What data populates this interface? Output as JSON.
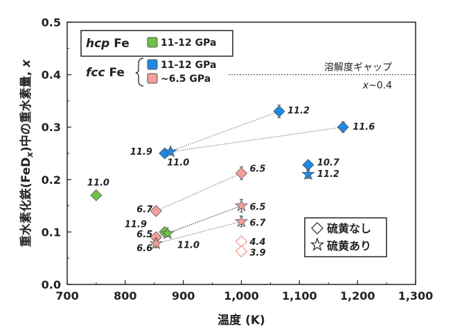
{
  "chart_data": {
    "type": "scatter",
    "title": "",
    "xlabel": "温度 (K)",
    "ylabel_parts": [
      "重水素化鉄(FeD",
      "x",
      ")中の重水素量, ",
      "x"
    ],
    "xlim": [
      700,
      1300
    ],
    "ylim": [
      0.0,
      0.5
    ],
    "xticks": [
      700,
      800,
      900,
      1000,
      1100,
      1200,
      1300
    ],
    "xtick_labels": [
      "700",
      "800",
      "900",
      "1,000",
      "1,100",
      "1,200",
      "1,300"
    ],
    "yticks": [
      0.0,
      0.1,
      0.2,
      0.3,
      0.4,
      0.5
    ],
    "ytick_labels": [
      "0.0",
      "0.1",
      "0.2",
      "0.3",
      "0.4",
      "0.5"
    ],
    "colors": {
      "hcp_green": "#6cc24a",
      "fcc_blue": "#1e88e5",
      "fcc_pink": "#f4a09a",
      "edge": "#555555"
    },
    "legend": {
      "entries": [
        {
          "phase_italic": "hcp",
          "phase_suffix": " Fe",
          "label": "11-12 GPa",
          "color_key": "hcp_green"
        },
        {
          "phase_italic": "fcc",
          "phase_suffix": " Fe",
          "label": "11-12 GPa",
          "color_key": "fcc_blue"
        },
        {
          "phase_italic": "",
          "phase_suffix": "",
          "label": "~6.5 GPa",
          "color_key": "fcc_pink"
        }
      ],
      "placement": "top-left"
    },
    "shape_legend": {
      "diamond_label": "硫黄なし",
      "star_label": "硫黄あり",
      "placement": "lower-right"
    },
    "gap_line": {
      "y": 0.4,
      "label": "溶解度ギャップ",
      "sublabel_italic": "x",
      "sublabel_rest": "~0.4"
    },
    "points": [
      {
        "x": 750,
        "y": 0.17,
        "marker": "diamond",
        "color_key": "hcp_green",
        "label": "11.0",
        "err": 0.006
      },
      {
        "x": 868,
        "y": 0.1,
        "marker": "diamond",
        "color_key": "hcp_green",
        "label": "11.9",
        "err": 0.006
      },
      {
        "x": 873,
        "y": 0.097,
        "marker": "star",
        "color_key": "hcp_green",
        "label": "11.0",
        "err": 0.006
      },
      {
        "x": 868,
        "y": 0.25,
        "marker": "diamond",
        "color_key": "fcc_blue",
        "label": "11.9",
        "err": 0.006
      },
      {
        "x": 878,
        "y": 0.253,
        "marker": "star",
        "color_key": "fcc_blue",
        "label": "11.0",
        "err": 0.006
      },
      {
        "x": 1065,
        "y": 0.33,
        "marker": "diamond",
        "color_key": "fcc_blue",
        "label": "11.2",
        "err": 0.012
      },
      {
        "x": 1175,
        "y": 0.3,
        "marker": "diamond",
        "color_key": "fcc_blue",
        "label": "11.6",
        "err": 0.01
      },
      {
        "x": 1115,
        "y": 0.228,
        "marker": "diamond",
        "color_key": "fcc_blue",
        "label": "10.7",
        "err": 0.008
      },
      {
        "x": 1115,
        "y": 0.21,
        "marker": "star",
        "color_key": "fcc_blue",
        "label": "11.2",
        "err": 0.008
      },
      {
        "x": 853,
        "y": 0.14,
        "marker": "diamond",
        "color_key": "fcc_pink",
        "label": "6.7",
        "err": 0.008
      },
      {
        "x": 853,
        "y": 0.09,
        "marker": "diamond",
        "color_key": "fcc_pink",
        "label": "6.5",
        "err": 0.008
      },
      {
        "x": 853,
        "y": 0.078,
        "marker": "star",
        "color_key": "fcc_pink",
        "label": "6.6",
        "err": 0.008
      },
      {
        "x": 1000,
        "y": 0.212,
        "marker": "diamond",
        "color_key": "fcc_pink",
        "label": "6.5",
        "err": 0.012
      },
      {
        "x": 1000,
        "y": 0.15,
        "marker": "star",
        "color_key": "fcc_pink",
        "label": "6.5",
        "err": 0.012
      },
      {
        "x": 1000,
        "y": 0.12,
        "marker": "star",
        "color_key": "fcc_pink",
        "label": "6.7",
        "err": 0.01
      },
      {
        "x": 1000,
        "y": 0.082,
        "marker": "diamond",
        "color_key": "fcc_pink",
        "open": true,
        "label": "4.4"
      },
      {
        "x": 1000,
        "y": 0.063,
        "marker": "diamond",
        "color_key": "fcc_pink",
        "open": true,
        "label": "3.9"
      }
    ],
    "dotted_links": [
      [
        [
          878,
          0.253
        ],
        [
          1175,
          0.3
        ]
      ],
      [
        [
          868,
          0.25
        ],
        [
          1065,
          0.33
        ]
      ],
      [
        [
          853,
          0.14
        ],
        [
          1000,
          0.212
        ]
      ],
      [
        [
          853,
          0.09
        ],
        [
          1000,
          0.15
        ]
      ],
      [
        [
          853,
          0.078
        ],
        [
          1000,
          0.12
        ]
      ],
      [
        [
          750,
          0.17
        ],
        [
          750,
          0.17
        ]
      ],
      [
        [
          873,
          0.097
        ],
        [
          1000,
          0.15
        ]
      ]
    ]
  }
}
